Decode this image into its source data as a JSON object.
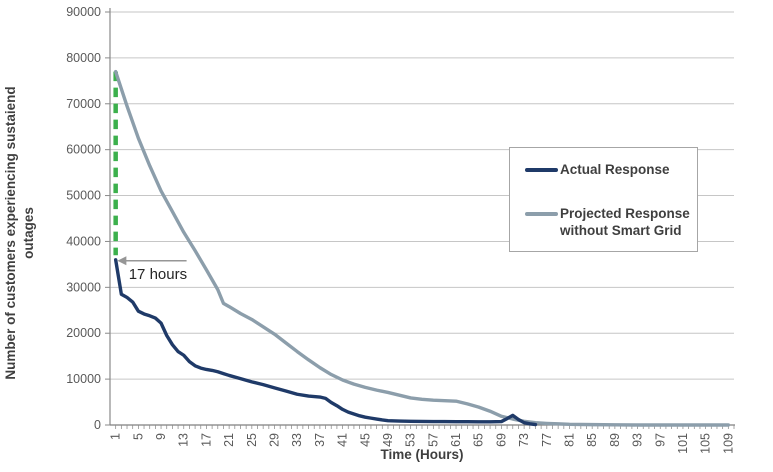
{
  "ui": {
    "ylabel_line1": "Number of customers experiencing sustaiend",
    "ylabel_line2": "outages",
    "legend": {
      "items": [
        {
          "label": "Actual Response",
          "color": "#1F3A68"
        },
        {
          "label": "Projected Response without Smart Grid",
          "color": "#8C9EAB"
        }
      ]
    }
  },
  "chart_data": {
    "type": "line",
    "title": "",
    "xlabel": "Time (Hours)",
    "ylabel": "Number of customers experiencing sustaiend outages",
    "xlim": [
      0,
      110
    ],
    "ylim": [
      0,
      90000
    ],
    "x_ticks": [
      1,
      5,
      9,
      13,
      17,
      21,
      25,
      29,
      33,
      37,
      41,
      45,
      49,
      53,
      57,
      61,
      65,
      69,
      73,
      77,
      81,
      85,
      89,
      93,
      97,
      101,
      105,
      109
    ],
    "y_ticks": [
      0,
      10000,
      20000,
      30000,
      40000,
      50000,
      60000,
      70000,
      80000,
      90000
    ],
    "grid": "horizontal",
    "legend_position": "middle-right",
    "colors": {
      "actual": "#1F3A68",
      "projected": "#8C9EAB",
      "grid": "#C6C6C6",
      "axis": "#8A8A8A",
      "tick_text": "#595959",
      "annotation_green": "#3CB04C",
      "arrow": "#969696",
      "annotation_text": "#262626"
    },
    "series": [
      {
        "name": "Actual Response",
        "color": "#1F3A68",
        "x": [
          1,
          2,
          3,
          4,
          5,
          6,
          7,
          8,
          9,
          10,
          11,
          12,
          13,
          14,
          15,
          16,
          17,
          18,
          19,
          20,
          21,
          23,
          25,
          27,
          29,
          31,
          33,
          35,
          37,
          38,
          39,
          40,
          41,
          42,
          43,
          44,
          45,
          46,
          47,
          48,
          49,
          51,
          53,
          55,
          57,
          59,
          61,
          63,
          65,
          67,
          69,
          70,
          71,
          72,
          73,
          74,
          75
        ],
        "y": [
          36000,
          28500,
          27800,
          26800,
          24800,
          24200,
          23800,
          23300,
          22200,
          19500,
          17500,
          16000,
          15200,
          13800,
          12900,
          12400,
          12100,
          11900,
          11600,
          11200,
          10800,
          10100,
          9400,
          8800,
          8100,
          7400,
          6700,
          6300,
          6100,
          5800,
          4900,
          4200,
          3400,
          2800,
          2400,
          2000,
          1700,
          1500,
          1300,
          1100,
          950,
          850,
          800,
          780,
          760,
          750,
          730,
          720,
          700,
          700,
          750,
          1400,
          2100,
          1200,
          500,
          250,
          100
        ]
      },
      {
        "name": "Projected Response without Smart Grid",
        "color": "#8C9EAB",
        "x": [
          1,
          3,
          5,
          7,
          9,
          11,
          13,
          15,
          17,
          19,
          20,
          21,
          23,
          25,
          27,
          29,
          31,
          33,
          35,
          37,
          39,
          41,
          43,
          45,
          47,
          49,
          51,
          53,
          55,
          57,
          59,
          61,
          63,
          65,
          67,
          69,
          71,
          73,
          75,
          77,
          79,
          81,
          85,
          89,
          93,
          97,
          101,
          105,
          109
        ],
        "y": [
          77000,
          69500,
          62500,
          56500,
          51000,
          46500,
          42000,
          38000,
          33800,
          29500,
          26500,
          25800,
          24300,
          23000,
          21400,
          19800,
          17900,
          16000,
          14200,
          12500,
          11000,
          9800,
          8900,
          8200,
          7600,
          7100,
          6500,
          5900,
          5600,
          5400,
          5300,
          5200,
          4600,
          3900,
          3000,
          1900,
          1300,
          800,
          500,
          350,
          250,
          150,
          80,
          30,
          0,
          0,
          0,
          0,
          0
        ]
      }
    ],
    "annotations": {
      "vertical_dashed_line": {
        "x": 1,
        "y_from": 77000,
        "y_to": 37000,
        "color": "#3CB04C"
      },
      "arrow": {
        "y": 35800,
        "x_from": 13.5,
        "x_to": 1.3
      },
      "label": {
        "text": "17 hours",
        "x": 3.3,
        "y": 31800
      }
    }
  }
}
